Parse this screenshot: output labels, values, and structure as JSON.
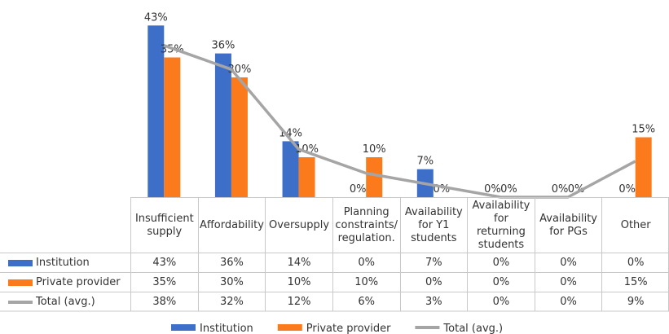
{
  "chart_data": {
    "type": "bar",
    "categories": [
      "Insufficient supply",
      "Affordability",
      "Oversupply",
      "Planning constraints/ regulation.",
      "Availability for Y1 students",
      "Availability for returning students",
      "Availability for PGs",
      "Other"
    ],
    "series": [
      {
        "name": "Institution",
        "type": "bar",
        "color": "#3d6fc8",
        "values": [
          43,
          36,
          14,
          0,
          7,
          0,
          0,
          0
        ],
        "value_labels": [
          "43%",
          "36%",
          "14%",
          "0%",
          "7%",
          "0%",
          "0%",
          "0%"
        ]
      },
      {
        "name": "Private provider",
        "type": "bar",
        "color": "#fb7b1c",
        "values": [
          35,
          30,
          10,
          10,
          0,
          0,
          0,
          15
        ],
        "value_labels": [
          "35%",
          "30%",
          "10%",
          "10%",
          "0%",
          "0%",
          "0%",
          "15%"
        ]
      },
      {
        "name": "Total (avg.)",
        "type": "line",
        "color": "#a5a5a5",
        "values": [
          38,
          32,
          12,
          6,
          3,
          0,
          0,
          9
        ],
        "value_labels": [
          "38%",
          "32%",
          "12%",
          "6%",
          "3%",
          "0%",
          "0%",
          "9%"
        ]
      }
    ]
  }
}
